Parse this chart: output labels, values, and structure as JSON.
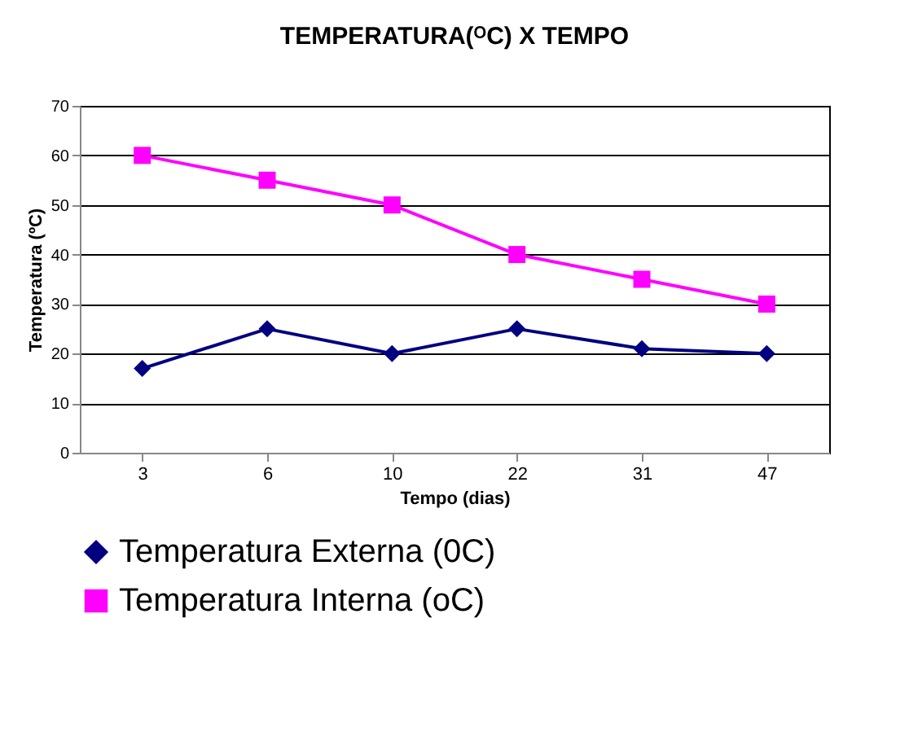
{
  "chart_data": {
    "type": "line",
    "title": "TEMPERATURA(ᴼC) X TEMPO",
    "xlabel": "Tempo (dias)",
    "ylabel": "Temperatura (ºC)",
    "categories": [
      "3",
      "6",
      "10",
      "22",
      "31",
      "47"
    ],
    "series": [
      {
        "name": "Temperatura Externa (0C)",
        "color": "#000080",
        "marker": "diamond",
        "values": [
          17,
          25,
          20,
          25,
          21,
          20
        ]
      },
      {
        "name": "Temperatura Interna (oC)",
        "color": "#ff00ff",
        "marker": "square",
        "values": [
          60,
          55,
          50,
          40,
          35,
          30
        ]
      }
    ],
    "ylim": [
      0,
      70
    ],
    "yticks": [
      0,
      10,
      20,
      30,
      40,
      50,
      60,
      70
    ],
    "grid": "y",
    "legend": "bottom"
  }
}
